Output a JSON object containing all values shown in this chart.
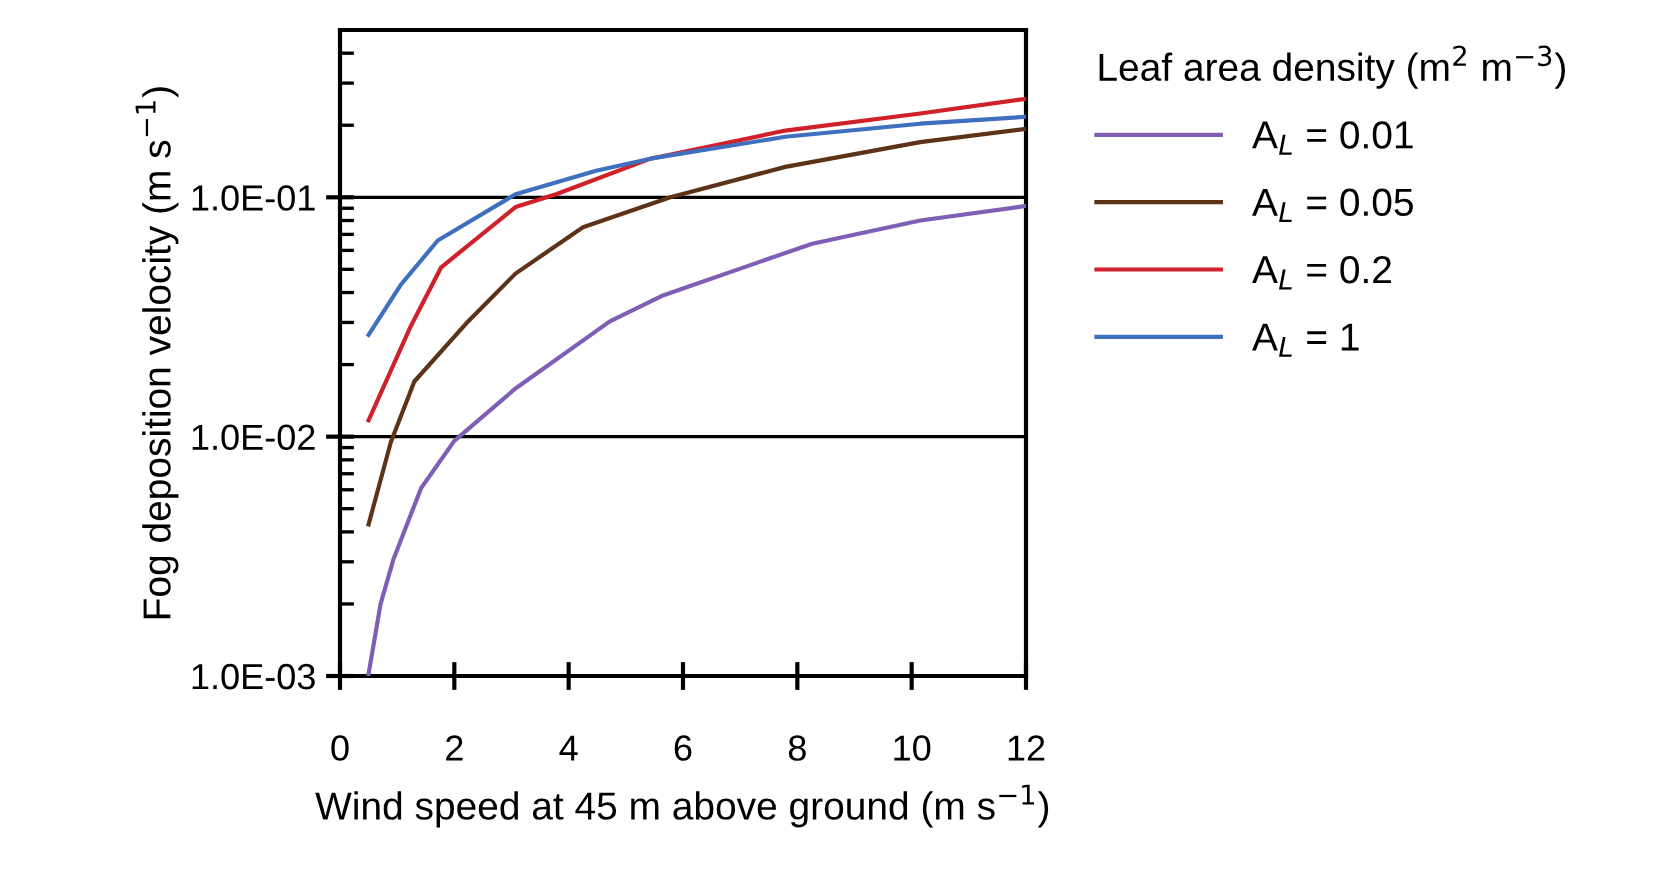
{
  "chart_data": {
    "type": "line",
    "xlabel": "Wind speed at 45 m above ground (m s$^{−1}$)",
    "ylabel": "Fog deposition velocity (m s$^{−1}$)",
    "legend_title": "Leaf area density (m$^{2}$ m$^{−3}$)",
    "log": "y",
    "xlim": [
      0,
      12
    ],
    "xticks": [
      0,
      2,
      4,
      6,
      8,
      10,
      12
    ],
    "ylim": [
      0.001,
      0.5
    ],
    "yticks": [
      {
        "value": 0.001,
        "label": "1.0E-03"
      },
      {
        "value": 0.01,
        "label": "1.0E-02"
      },
      {
        "value": 0.1,
        "label": "1.0E-01"
      }
    ],
    "grid": "y",
    "legend": "right",
    "marker": "none",
    "line_style": "solid",
    "series": [
      {
        "name": "A$_{L}$ = 0.01",
        "color": "#7f5fb5",
        "x": [
          0.5,
          0.71,
          0.94,
          1.42,
          2.0,
          3.07,
          4.72,
          5.66,
          8.26,
          10.15,
          12
        ],
        "values": [
          0.00102,
          0.002,
          0.0031,
          0.0061,
          0.0096,
          0.0159,
          0.0303,
          0.039,
          0.064,
          0.08,
          0.092
        ]
      },
      {
        "name": "A$_{L}$ = 0.05",
        "color": "#5c3317",
        "x": [
          0.5,
          0.89,
          1.3,
          2.24,
          3.07,
          4.25,
          5.78,
          7.79,
          10.15,
          12
        ],
        "values": [
          0.0043,
          0.0095,
          0.017,
          0.0303,
          0.048,
          0.075,
          0.1,
          0.134,
          0.17,
          0.193
        ]
      },
      {
        "name": "A$_{L}$ = 0.2",
        "color": "#d0202a",
        "x": [
          0.5,
          1.24,
          1.77,
          3.07,
          3.78,
          5.43,
          7.79,
          10.15,
          12
        ],
        "values": [
          0.0117,
          0.029,
          0.051,
          0.091,
          0.103,
          0.145,
          0.19,
          0.224,
          0.258
        ]
      },
      {
        "name": "A$_{L}$ = 1",
        "color": "#3f6fbf",
        "x": [
          0.5,
          1.06,
          1.71,
          3.07,
          4.48,
          5.43,
          7.79,
          10.15,
          12
        ],
        "values": [
          0.0266,
          0.043,
          0.066,
          0.103,
          0.129,
          0.145,
          0.179,
          0.203,
          0.217
        ]
      }
    ]
  }
}
